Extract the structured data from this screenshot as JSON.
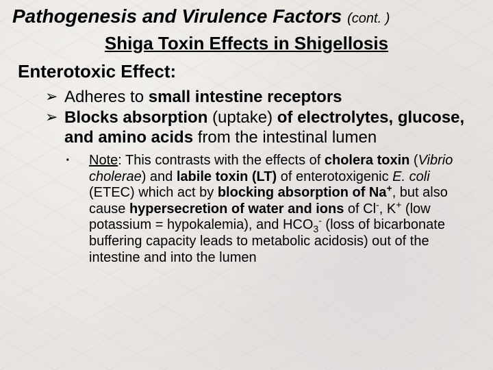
{
  "title_main": "Pathogenesis and Virulence Factors",
  "title_cont": "(cont. )",
  "subtitle": "Shiga Toxin Effects in Shigellosis",
  "section_head": "Enterotoxic Effect:",
  "arrow_glyph": "➢",
  "arrow_items": [
    {
      "pre": "Adheres to ",
      "bold": "small intestine receptors",
      "post": ""
    },
    {
      "bold1": "Blocks absorption",
      "mid1": " (uptake) ",
      "bold2": "of electrolytes, glucose, and amino acids",
      "post": " from the intestinal lumen"
    }
  ],
  "note_bullet": "·",
  "note": {
    "lead_ul": "Note",
    "lead_post": ": This contrasts with the effects of ",
    "b1": "cholera toxin",
    "paren1_open": " (",
    "ital1": "Vibrio cholerae",
    "paren1_close": ") and ",
    "b2": "labile toxin (LT)",
    "mid1": " of enterotoxigenic ",
    "ital2": "E. coli",
    "mid2": " (ETEC) which act by ",
    "b3_pre": "blocking absorption of Na",
    "b3_sup": "+",
    "mid3": ", but also cause ",
    "b4": "hypersecretion of water and ions",
    "mid4": " of ",
    "cl": "Cl",
    "cl_sup": "-",
    "comma1": ", ",
    "k": "K",
    "k_sup": "+",
    "k_note": "  (low potassium = hypokalemia), and ",
    "hco": "HCO",
    "hco_sub": "3",
    "hco_sup": "-",
    "tail": " (loss of bicarbonate buffering capacity leads to metabolic acidosis) out of the intestine and into the lumen"
  },
  "colors": {
    "text": "#000000",
    "background": "#e8e4e0"
  },
  "fonts": {
    "family": "Arial",
    "title_size_pt": 28,
    "subtitle_size_pt": 26,
    "section_size_pt": 26,
    "body_size_pt": 24,
    "note_size_pt": 20
  }
}
